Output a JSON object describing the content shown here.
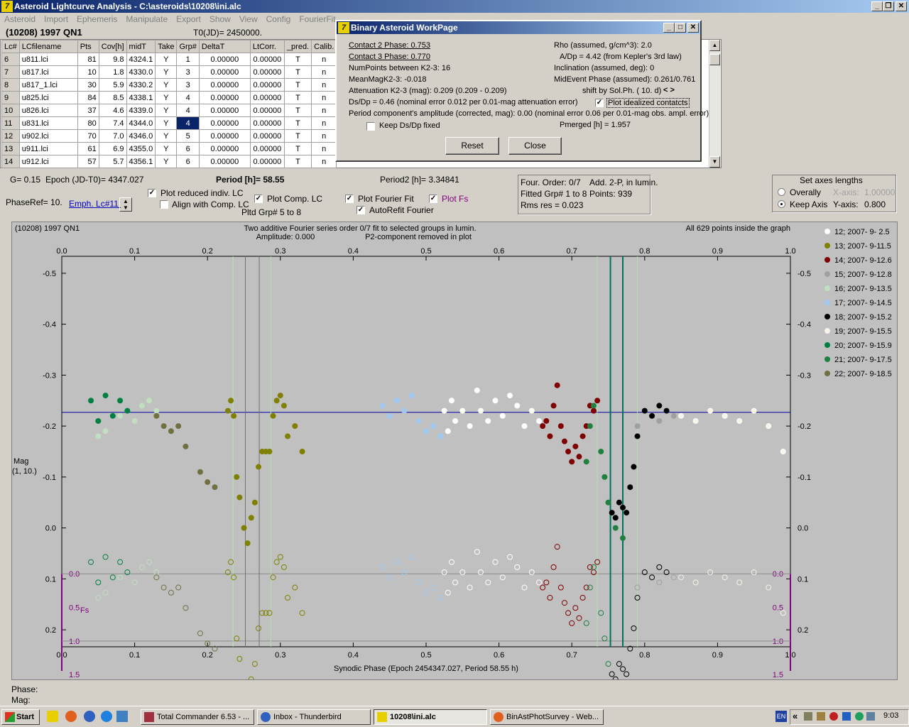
{
  "window": {
    "title": "Asteroid Lightcurve Analysis - C:\\asteroids\\10208\\ini.alc",
    "buttons": [
      "_",
      "❐",
      "✕"
    ]
  },
  "menu": [
    "Asteroid",
    "Import",
    "Ephemeris",
    "Manipulate",
    "Export",
    "Show",
    "View",
    "Config",
    "FourierFit"
  ],
  "header": {
    "object": "(10208) 1997 QN1",
    "t0": "T0(JD)= 2450000."
  },
  "table": {
    "columns": [
      "Lc#",
      "LCfilename",
      "Pts",
      "Cov[h]",
      "midT",
      "Take",
      "Grp#",
      "DeltaT",
      "LtCorr.",
      "_pred.",
      "Calib."
    ],
    "rows": [
      [
        "6",
        "u811.lci",
        "81",
        "9.8",
        "4324.1",
        "Y",
        "1",
        "0.00000",
        "0.00000",
        "T",
        "n"
      ],
      [
        "7",
        "u817.lci",
        "10",
        "1.8",
        "4330.0",
        "Y",
        "3",
        "0.00000",
        "0.00000",
        "T",
        "n"
      ],
      [
        "8",
        "u817_1.lci",
        "30",
        "5.9",
        "4330.2",
        "Y",
        "3",
        "0.00000",
        "0.00000",
        "T",
        "n"
      ],
      [
        "9",
        "u825.lci",
        "84",
        "8.5",
        "4338.1",
        "Y",
        "4",
        "0.00000",
        "0.00000",
        "T",
        "n"
      ],
      [
        "10",
        "u826.lci",
        "37",
        "4.6",
        "4339.0",
        "Y",
        "4",
        "0.00000",
        "0.00000",
        "T",
        "n"
      ],
      [
        "11",
        "u831.lci",
        "80",
        "7.4",
        "4344.0",
        "Y",
        "4",
        "0.00000",
        "0.00000",
        "T",
        "n"
      ],
      [
        "12",
        "u902.lci",
        "70",
        "7.0",
        "4346.0",
        "Y",
        "5",
        "0.00000",
        "0.00000",
        "T",
        "n"
      ],
      [
        "13",
        "u911.lci",
        "61",
        "6.9",
        "4355.0",
        "Y",
        "6",
        "0.00000",
        "0.00000",
        "T",
        "n"
      ],
      [
        "14",
        "u912.lci",
        "57",
        "5.7",
        "4356.1",
        "Y",
        "6",
        "0.00000",
        "0.00000",
        "T",
        "n"
      ]
    ],
    "selected_row_index": 5
  },
  "dialog": {
    "title": "Binary Asteroid WorkPage",
    "contact2": "Contact 2 Phase:   0.753",
    "contact3": "Contact 3 Phase:   0.770",
    "numpoints": "NumPoints between K2-3:     16",
    "meanmag": "MeanMagK2-3:  -0.018",
    "attenuation": "Attenuation K2-3 (mag):  0.209  (0.209 - 0.209)",
    "dsdp": "Ds/Dp = 0.46 (nominal error 0.012 per 0.01-mag attenuation error)",
    "period_amp": "Period component's amplitude (corrected, mag): 0.00 (nominal error 0.06 per 0.01-mag obs. ampl. error)",
    "keep_dsdp": "Keep Ds/Dp fixed",
    "rho": "Rho (assumed, g/cm^3): 2.0",
    "adp": "A/Dp = 4.42 (from Kepler's 3rd law)",
    "inclination": "Inclination (assumed, deg): 0",
    "midevent": "MidEvent Phase (assumed): 0.261/0.761",
    "shift": "shift by Sol.Ph. ( 10. d)",
    "shift_arrows": "< >",
    "plot_idealized": "Plot idealized contatcts",
    "pmerged": "Pmerged [h] =  1.957",
    "reset": "Reset",
    "close": "Close"
  },
  "info": {
    "g": "G= 0.15",
    "epoch": "Epoch (JD-T0)= 4347.027",
    "period": "Period [h]= 58.55",
    "period2": "Period2 [h]= 3.34841",
    "phaseref": "PhaseRef= 10.",
    "emph": "Emph. Lc#11:",
    "plot_reduced": "Plot reduced indiv. LC",
    "align": "Align with Comp. LC",
    "plot_comp": "Plot Comp. LC",
    "pltd_grp": "Pltd Grp#   5   to    8",
    "plot_fourier": "Plot Fourier Fit",
    "autorefit": "AutoRefit Fourier",
    "plot_fs": "Plot Fs",
    "four_order": "Four. Order:  0/7",
    "add2p": "Add. 2-P, in lumin.",
    "fitted": "Fitted Grp# 1 to 8",
    "points": "Points: 939",
    "rms": "Rms res       = 0.023"
  },
  "axes_panel": {
    "title": "Set axes lengths",
    "overally": "Overally",
    "keep_axis": "Keep Axis",
    "xaxis_label": "X-axis:",
    "xaxis_value": "1.00000",
    "yaxis_label": "Y-axis:",
    "yaxis_value": "0.800"
  },
  "graph": {
    "object": "(10208) 1997 QN1",
    "title1": "Two additive Fourier series order 0/7 fit to selected groups in lumin.",
    "title2_left": "Amplitude: 0.000",
    "title2_right": "P2-component removed in plot",
    "inside": "All 629 points inside the graph",
    "ylabel1": "Mag",
    "ylabel2": "(1, 10.)",
    "fs_label": "Fs",
    "xlabel": "Synodic Phase (Epoch 2454347.027, Period 58.55 h)",
    "phase_label": "Phase:",
    "mag_label": "Mag:"
  },
  "chart_data": {
    "type": "scatter",
    "xlabel": "Synodic Phase (Epoch 2454347.027, Period 58.55 h)",
    "ylabel": "Mag",
    "xlim": [
      0.0,
      1.0
    ],
    "ylim": [
      0.2333,
      -0.5333
    ],
    "x_ticks": [
      "0.0",
      "0.1",
      "0.2",
      "0.3",
      "0.4",
      "0.5",
      "0.6",
      "0.7",
      "0.8",
      "0.9",
      "1.0"
    ],
    "y_ticks": [
      "-0.5",
      "-0.4",
      "-0.3",
      "-0.2",
      "-0.1",
      "0.0",
      "0.1",
      "0.2"
    ],
    "fs_ticks": [
      "0.0",
      "0.5",
      "1.0",
      "1.5"
    ],
    "fourier_fit_mag": -0.227,
    "contacts": [
      0.753,
      0.77
    ],
    "series": [
      {
        "name": "12; 2007- 9- 2.5",
        "color": "#ffffff",
        "x": [
          0.525,
          0.53,
          0.535,
          0.54,
          0.55,
          0.56,
          0.57,
          0.575,
          0.585,
          0.595,
          0.605,
          0.615,
          0.625,
          0.635,
          0.645,
          0.655
        ],
        "y": [
          -0.23,
          -0.19,
          -0.25,
          -0.21,
          -0.23,
          -0.2,
          -0.27,
          -0.23,
          -0.21,
          -0.25,
          -0.22,
          -0.26,
          -0.24,
          -0.2,
          -0.23,
          -0.21
        ]
      },
      {
        "name": "13; 2007- 9-11.5",
        "color": "#808000",
        "x": [
          0.228,
          0.232,
          0.236,
          0.24,
          0.244,
          0.25,
          0.255,
          0.26,
          0.265,
          0.27,
          0.275,
          0.28,
          0.285,
          0.29,
          0.295,
          0.3,
          0.305,
          0.31,
          0.32,
          0.33
        ],
        "y": [
          -0.23,
          -0.25,
          -0.22,
          -0.1,
          -0.06,
          0.0,
          0.03,
          -0.02,
          -0.05,
          -0.12,
          -0.15,
          -0.15,
          -0.15,
          -0.22,
          -0.25,
          -0.26,
          -0.24,
          -0.18,
          -0.2,
          -0.15
        ]
      },
      {
        "name": "14; 2007- 9-12.6",
        "color": "#800000",
        "x": [
          0.66,
          0.665,
          0.67,
          0.675,
          0.68,
          0.685,
          0.69,
          0.695,
          0.7,
          0.705,
          0.71,
          0.715,
          0.72,
          0.725,
          0.73,
          0.735
        ],
        "y": [
          -0.2,
          -0.21,
          -0.18,
          -0.24,
          -0.28,
          -0.2,
          -0.17,
          -0.15,
          -0.13,
          -0.16,
          -0.14,
          -0.18,
          -0.2,
          -0.24,
          -0.23,
          -0.25
        ]
      },
      {
        "name": "15; 2007- 9-12.8",
        "color": "#a0a0a0",
        "x": [
          0.79,
          0.8,
          0.82,
          0.84,
          0.85
        ],
        "y": [
          -0.2,
          -0.23,
          -0.21,
          -0.22,
          -0.22
        ]
      },
      {
        "name": "16; 2007- 9-13.5",
        "color": "#c0e0c0",
        "x": [
          0.05,
          0.06,
          0.08,
          0.1,
          0.11,
          0.12,
          0.13
        ],
        "y": [
          -0.18,
          -0.19,
          -0.22,
          -0.21,
          -0.24,
          -0.25,
          -0.23
        ]
      },
      {
        "name": "17; 2007- 9-14.5",
        "color": "#a0c8f0",
        "x": [
          0.44,
          0.45,
          0.46,
          0.47,
          0.48,
          0.49,
          0.5,
          0.51,
          0.52
        ],
        "y": [
          -0.24,
          -0.22,
          -0.25,
          -0.23,
          -0.26,
          -0.21,
          -0.19,
          -0.2,
          -0.18
        ]
      },
      {
        "name": "18; 2007- 9-15.2",
        "color": "#000000",
        "x": [
          0.755,
          0.76,
          0.765,
          0.77,
          0.775,
          0.78,
          0.785,
          0.79,
          0.8,
          0.81,
          0.82,
          0.83
        ],
        "y": [
          -0.03,
          -0.02,
          -0.05,
          -0.04,
          -0.03,
          -0.08,
          -0.12,
          -0.18,
          -0.23,
          -0.22,
          -0.24,
          -0.23
        ]
      },
      {
        "name": "19; 2007- 9-15.5",
        "color": "#f8f4e8",
        "x": [
          0.85,
          0.87,
          0.89,
          0.91,
          0.93,
          0.95,
          0.97,
          0.99
        ],
        "y": [
          -0.22,
          -0.21,
          -0.23,
          -0.22,
          -0.21,
          -0.23,
          -0.2,
          -0.15
        ]
      },
      {
        "name": "20; 2007- 9-15.9",
        "color": "#008040",
        "x": [
          0.04,
          0.05,
          0.06,
          0.07,
          0.08,
          0.09
        ],
        "y": [
          -0.25,
          -0.21,
          -0.26,
          -0.22,
          -0.25,
          -0.23
        ]
      },
      {
        "name": "21; 2007- 9-17.5",
        "color": "#208040",
        "x": [
          0.72,
          0.725,
          0.73,
          0.74,
          0.745,
          0.75,
          0.76,
          0.77
        ],
        "y": [
          -0.13,
          -0.2,
          -0.24,
          -0.15,
          -0.1,
          -0.05,
          0.0,
          0.02
        ]
      },
      {
        "name": "22; 2007- 9-18.5",
        "color": "#707040",
        "x": [
          0.13,
          0.14,
          0.15,
          0.16,
          0.17,
          0.19,
          0.2,
          0.21
        ],
        "y": [
          -0.22,
          -0.2,
          -0.19,
          -0.2,
          -0.16,
          -0.11,
          -0.09,
          -0.08
        ]
      }
    ]
  },
  "taskbar": {
    "start": "Start",
    "tasks": [
      "Total Commander 6.53 - ...",
      "Inbox - Thunderbird",
      "10208\\ini.alc",
      "BinAstPhotSurvey - Web..."
    ],
    "tray_lang": "EN",
    "tray_arrows": "«",
    "clock": "9:03"
  }
}
